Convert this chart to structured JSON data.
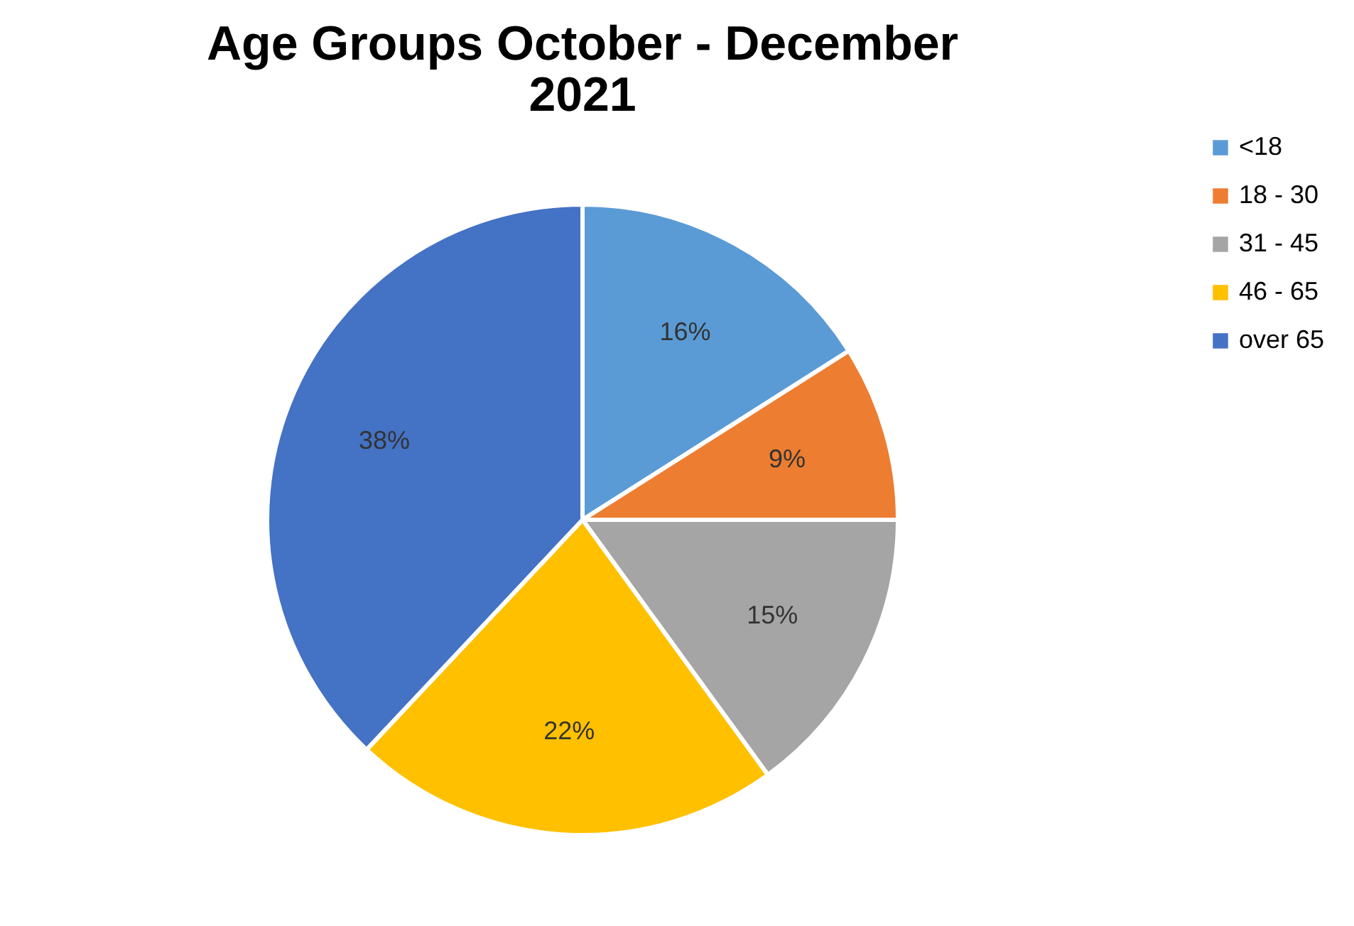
{
  "chart_data": {
    "type": "pie",
    "title": "Age Groups  October - December 2021",
    "categories": [
      "<18",
      "18 - 30",
      "31 - 45",
      "46 - 65",
      "over 65"
    ],
    "values": [
      16,
      9,
      15,
      22,
      38
    ],
    "colors": [
      "#5b9bd5",
      "#ed7d31",
      "#a5a5a5",
      "#ffc000",
      "#4472c4"
    ],
    "value_labels": [
      "16%",
      "9%",
      "15%",
      "22%",
      "38%"
    ],
    "legend": "right"
  }
}
